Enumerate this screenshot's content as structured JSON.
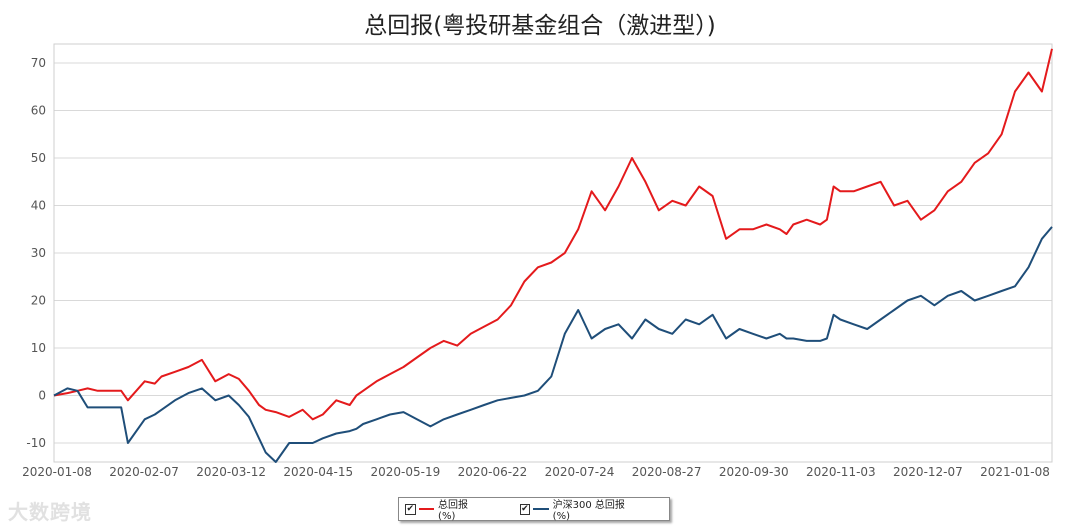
{
  "chart_data": {
    "type": "line",
    "title": "总回报(粤投研基金组合（激进型）)",
    "xlabel": "",
    "ylabel": "",
    "ylim": [
      -14,
      74
    ],
    "yticks": [
      -10,
      0,
      10,
      20,
      30,
      40,
      50,
      60,
      70
    ],
    "x_tick_labels": [
      "2020-01-08",
      "2020-02-07",
      "2020-03-12",
      "2020-04-15",
      "2020-05-19",
      "2020-06-22",
      "2020-07-24",
      "2020-08-27",
      "2020-09-30",
      "2020-11-03",
      "2020-12-07",
      "2021-01-08"
    ],
    "grid": "horizontal",
    "legend_position": "bottom",
    "x_index": [
      0,
      4,
      7,
      10,
      13,
      16,
      20,
      22,
      27,
      30,
      32,
      36,
      40,
      44,
      48,
      52,
      55,
      58,
      61,
      63,
      66,
      70,
      74,
      77,
      80,
      84,
      88,
      90,
      92,
      96,
      100,
      104,
      108,
      112,
      116,
      120,
      124,
      128,
      132,
      136,
      140,
      144,
      148,
      152,
      156,
      160,
      164,
      168,
      172,
      176,
      180,
      184,
      188,
      192,
      196,
      200,
      204,
      208,
      212,
      216,
      218,
      220,
      224,
      228,
      230,
      232,
      234,
      238,
      242,
      246,
      250,
      254,
      258,
      262,
      266,
      270,
      274,
      278,
      282,
      286,
      290,
      294,
      297
    ],
    "series": [
      {
        "name": "总回报(%)",
        "color": "#e41a1c",
        "values": [
          0,
          0.5,
          1,
          1.5,
          1,
          1,
          1,
          -1,
          3,
          2.5,
          4,
          5,
          6,
          7.5,
          3,
          4.5,
          3.5,
          1,
          -2,
          -3,
          -3.5,
          -4.5,
          -3,
          -5,
          -4,
          -1,
          -2,
          0,
          1,
          3,
          4.5,
          6,
          8,
          10,
          11.5,
          10.5,
          13,
          14.5,
          16,
          19,
          24,
          27,
          28,
          30,
          35,
          43,
          39,
          44,
          50,
          45,
          39,
          41,
          40,
          44,
          42,
          33,
          35,
          35,
          36,
          35,
          34,
          36,
          37,
          36,
          37,
          44,
          43,
          43,
          44,
          45,
          40,
          41,
          37,
          39,
          43,
          45,
          49,
          51,
          55,
          64,
          68,
          64,
          73
        ]
      },
      {
        "name": "沪深300 总回报(%)",
        "color": "#1f4e79",
        "values": [
          0,
          1.5,
          1,
          -2.5,
          -2.5,
          -2.5,
          -2.5,
          -10,
          -5,
          -4,
          -3,
          -1,
          0.5,
          1.5,
          -1,
          0,
          -2,
          -4.5,
          -9,
          -12,
          -14,
          -10,
          -10,
          -10,
          -9,
          -8,
          -7.5,
          -7,
          -6,
          -5,
          -4,
          -3.5,
          -5,
          -6.5,
          -5,
          -4,
          -3,
          -2,
          -1,
          -0.5,
          0,
          1,
          4,
          13,
          18,
          12,
          14,
          15,
          12,
          16,
          14,
          13,
          16,
          15,
          17,
          12,
          14,
          13,
          12,
          13,
          12,
          12,
          11.5,
          11.5,
          12,
          17,
          16,
          15,
          14,
          16,
          18,
          20,
          21,
          19,
          21,
          22,
          20,
          21,
          22,
          23,
          27,
          33,
          35.5
        ]
      }
    ]
  },
  "legend": {
    "items": [
      {
        "label": "总回报(%)",
        "color": "#e41a1c"
      },
      {
        "label": "沪深300 总回报(%)",
        "color": "#1f4e79"
      }
    ]
  },
  "watermark": "大数跨境"
}
